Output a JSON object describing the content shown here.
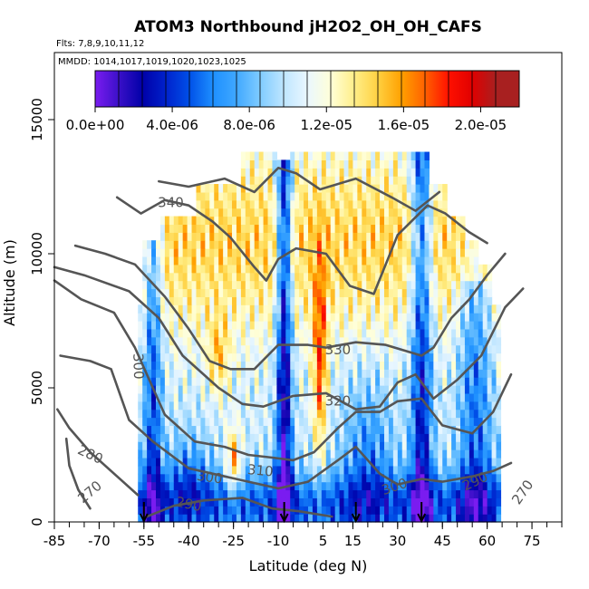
{
  "chart_data": {
    "type": "heatmap",
    "title": "ATOM3 Northbound jH2O2_OH_OH_CAFS",
    "flights_label": "Flts: 7,8,9,10,11,12",
    "dates_label": "MMDD: 1014,1017,1019,1020,1023,1025",
    "xlabel": "Latitude (deg N)",
    "ylabel": "Altitude (m)",
    "xlim": [
      -85,
      85
    ],
    "ylim": [
      0,
      17500
    ],
    "x_ticks": [
      "-85",
      "-70",
      "-55",
      "-40",
      "-25",
      "-10",
      "5",
      "15",
      "30",
      "45",
      "60",
      "75"
    ],
    "x_tick_values": [
      -85,
      -70,
      -55,
      -40,
      -25,
      -10,
      5,
      15,
      30,
      45,
      60,
      75
    ],
    "y_ticks": [
      "0",
      "5000",
      "10000",
      "15000"
    ],
    "y_tick_values": [
      0,
      5000,
      10000,
      15000
    ],
    "colorbar": {
      "range": [
        0,
        2.2e-05
      ],
      "tick_labels": [
        "0.0e+00",
        "4.0e-06",
        "8.0e-06",
        "1.2e-05",
        "1.6e-05",
        "2.0e-05"
      ],
      "tick_values": [
        0,
        4e-06,
        8e-06,
        1.2e-05,
        1.6e-05,
        2e-05
      ],
      "colors": [
        "#7a1cf0",
        "#3a10c8",
        "#0000a8",
        "#0022cc",
        "#0050e8",
        "#1e90ff",
        "#40a8ff",
        "#80ccff",
        "#bfe6ff",
        "#eaf7ff",
        "#ffffd8",
        "#ffee88",
        "#ffd040",
        "#ffa000",
        "#ff6000",
        "#ff1000",
        "#e00000",
        "#a82020"
      ]
    },
    "profile_latitudes": [
      -55,
      -8,
      16,
      38
    ],
    "theta_contours": [
      {
        "label": "270",
        "points": [
          [
            -73,
            500
          ],
          [
            -77,
            1200
          ],
          [
            -80,
            2100
          ],
          [
            -81,
            3100
          ]
        ]
      },
      {
        "label": "280",
        "points": [
          [
            -57,
            1000
          ],
          [
            -64,
            1700
          ],
          [
            -73,
            2600
          ],
          [
            -80,
            3500
          ],
          [
            -84,
            4200
          ]
        ]
      },
      {
        "label": "290",
        "points": [
          [
            -54,
            200
          ],
          [
            -45,
            600
          ],
          [
            -35,
            800
          ],
          [
            -22,
            900
          ],
          [
            -12,
            500
          ],
          [
            -3,
            400
          ],
          [
            8,
            200
          ]
        ]
      },
      {
        "label": "300",
        "points": [
          [
            -83,
            6200
          ],
          [
            -73,
            6000
          ],
          [
            -66,
            5700
          ],
          [
            -60,
            3800
          ],
          [
            -52,
            3000
          ],
          [
            -40,
            2000
          ],
          [
            -28,
            1700
          ],
          [
            -20,
            1500
          ],
          [
            -10,
            1250
          ],
          [
            0,
            1500
          ],
          [
            10,
            2300
          ],
          [
            16,
            2800
          ],
          [
            24,
            1800
          ],
          [
            30,
            1400
          ],
          [
            38,
            1600
          ],
          [
            45,
            1500
          ],
          [
            55,
            1700
          ],
          [
            62,
            1900
          ],
          [
            68,
            2200
          ]
        ]
      },
      {
        "label": "310",
        "points": [
          [
            -85,
            9000
          ],
          [
            -76,
            8300
          ],
          [
            -65,
            7800
          ],
          [
            -58,
            6500
          ],
          [
            -48,
            4000
          ],
          [
            -38,
            3000
          ],
          [
            -28,
            2800
          ],
          [
            -20,
            2500
          ],
          [
            -12,
            2400
          ],
          [
            -5,
            2300
          ],
          [
            2,
            2600
          ],
          [
            10,
            3500
          ],
          [
            16,
            4100
          ],
          [
            24,
            4100
          ],
          [
            30,
            4500
          ],
          [
            38,
            4600
          ],
          [
            45,
            3600
          ],
          [
            55,
            3300
          ],
          [
            62,
            4100
          ],
          [
            68,
            5500
          ]
        ]
      },
      {
        "label": "320",
        "points": [
          [
            -85,
            9500
          ],
          [
            -75,
            9200
          ],
          [
            -60,
            8600
          ],
          [
            -50,
            7600
          ],
          [
            -42,
            6200
          ],
          [
            -30,
            5000
          ],
          [
            -22,
            4400
          ],
          [
            -15,
            4300
          ],
          [
            -5,
            4700
          ],
          [
            6,
            4800
          ],
          [
            16,
            4200
          ],
          [
            24,
            4300
          ],
          [
            30,
            5200
          ],
          [
            36,
            5500
          ],
          [
            42,
            4600
          ],
          [
            50,
            5300
          ],
          [
            58,
            6200
          ],
          [
            66,
            8000
          ],
          [
            72,
            8700
          ]
        ]
      },
      {
        "label": "330",
        "points": [
          [
            -78,
            10300
          ],
          [
            -68,
            10000
          ],
          [
            -58,
            9600
          ],
          [
            -48,
            8400
          ],
          [
            -40,
            7200
          ],
          [
            -33,
            6000
          ],
          [
            -26,
            5700
          ],
          [
            -18,
            5700
          ],
          [
            -10,
            6600
          ],
          [
            0,
            6600
          ],
          [
            6,
            6500
          ],
          [
            16,
            6700
          ],
          [
            26,
            6600
          ],
          [
            38,
            6200
          ],
          [
            42,
            6500
          ],
          [
            48,
            7600
          ],
          [
            54,
            8300
          ],
          [
            60,
            9200
          ],
          [
            66,
            10000
          ]
        ]
      },
      {
        "label": "340",
        "points": [
          [
            -64,
            12100
          ],
          [
            -56,
            11500
          ],
          [
            -48,
            12000
          ],
          [
            -40,
            11800
          ],
          [
            -32,
            11200
          ],
          [
            -26,
            10600
          ],
          [
            -18,
            9500
          ],
          [
            -14,
            9000
          ],
          [
            -10,
            9800
          ],
          [
            -4,
            10200
          ],
          [
            6,
            10000
          ],
          [
            14,
            8800
          ],
          [
            22,
            8500
          ],
          [
            30,
            10700
          ],
          [
            40,
            11800
          ],
          [
            46,
            11500
          ],
          [
            54,
            10800
          ],
          [
            60,
            10400
          ]
        ]
      },
      {
        "label": "",
        "points": [
          [
            -50,
            12700
          ],
          [
            -40,
            12500
          ],
          [
            -28,
            12800
          ],
          [
            -18,
            12300
          ],
          [
            -10,
            13200
          ],
          [
            -4,
            13000
          ],
          [
            4,
            12400
          ],
          [
            16,
            12800
          ],
          [
            28,
            12100
          ],
          [
            36,
            11600
          ],
          [
            44,
            12300
          ]
        ]
      }
    ]
  }
}
